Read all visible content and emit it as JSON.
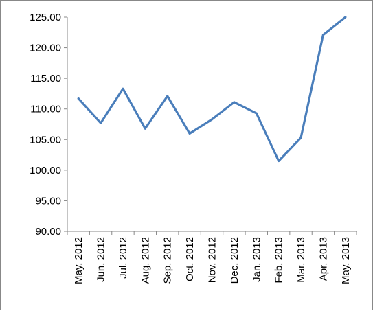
{
  "chart_data": {
    "type": "line",
    "title": "",
    "xlabel": "",
    "ylabel": "",
    "categories": [
      "May. 2012",
      "Jun. 2012",
      "Jul. 2012",
      "Aug. 2012",
      "Sep. 2012",
      "Oct. 2012",
      "Nov. 2012",
      "Dec. 2012",
      "Jan. 2013",
      "Feb. 2013",
      "Mar. 2013",
      "Apr. 2013",
      "May. 2013"
    ],
    "series": [
      {
        "values": [
          111.7,
          107.7,
          113.3,
          106.8,
          112.1,
          106.0,
          108.3,
          111.1,
          109.3,
          101.5,
          105.3,
          122.1,
          125.0
        ],
        "color": "#4a7ebb"
      }
    ],
    "ylim": [
      90,
      125
    ],
    "yticks": [
      "90.00",
      "95.00",
      "100.00",
      "105.00",
      "110.00",
      "115.00",
      "120.00",
      "125.00"
    ],
    "grid": false,
    "legend": "none"
  }
}
